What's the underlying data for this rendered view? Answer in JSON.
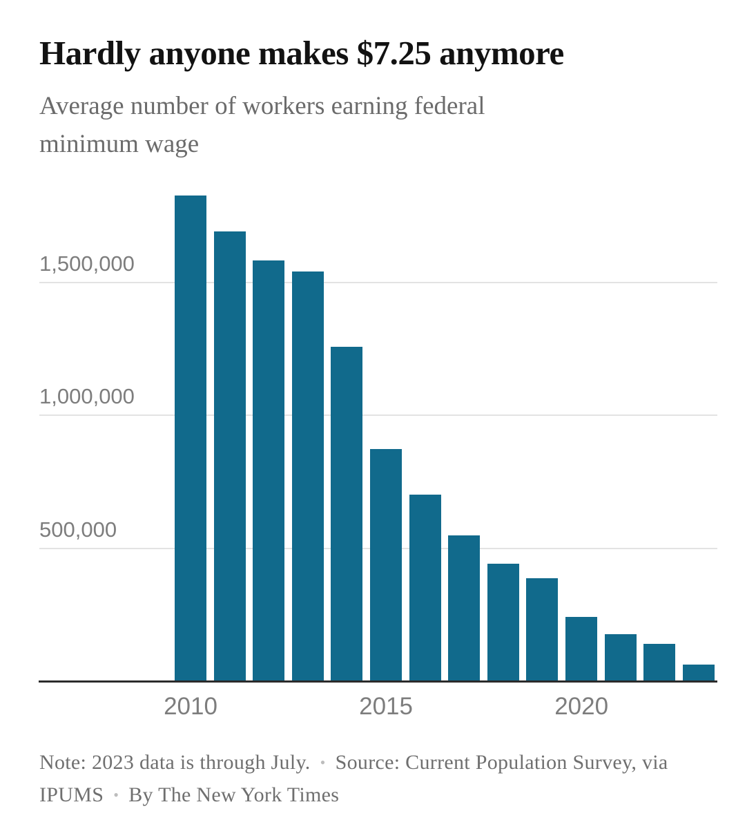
{
  "header": {
    "title": "Hardly anyone makes $7.25 anymore",
    "subtitle": "Average number of workers earning federal minimum wage"
  },
  "chart_data": {
    "type": "bar",
    "title": "Hardly anyone makes $7.25 anymore",
    "subtitle": "Average number of workers earning federal minimum wage",
    "categories": [
      "2010",
      "2011",
      "2012",
      "2013",
      "2014",
      "2015",
      "2016",
      "2017",
      "2018",
      "2019",
      "2020",
      "2021",
      "2022",
      "2023"
    ],
    "values": [
      1830000,
      1695000,
      1585000,
      1545000,
      1260000,
      875000,
      705000,
      550000,
      445000,
      390000,
      245000,
      180000,
      143000,
      65000
    ],
    "xlabel": "",
    "ylabel": "",
    "ylim": [
      0,
      1890000
    ],
    "grid": "horizontal",
    "legend": "none",
    "yticks": [
      {
        "value": 500000,
        "label": "500,000"
      },
      {
        "value": 1000000,
        "label": "1,000,000"
      },
      {
        "value": 1500000,
        "label": "1,500,000"
      }
    ],
    "xticks": [
      {
        "index": 0,
        "label": "2010"
      },
      {
        "index": 5,
        "label": "2015"
      },
      {
        "index": 10,
        "label": "2020"
      }
    ],
    "bar_color": "#116a8c",
    "grid_color": "#e3e3e3",
    "axis_color": "#2b2b2b",
    "title_color": "#121212",
    "text_color": "#6b6b6b",
    "tick_color": "#7d7d7d"
  },
  "footer": {
    "note": "Note: 2023 data is through July.",
    "source": "Source: Current Population Survey, via IPUMS",
    "byline": "By The New York Times",
    "bullet": "•"
  }
}
